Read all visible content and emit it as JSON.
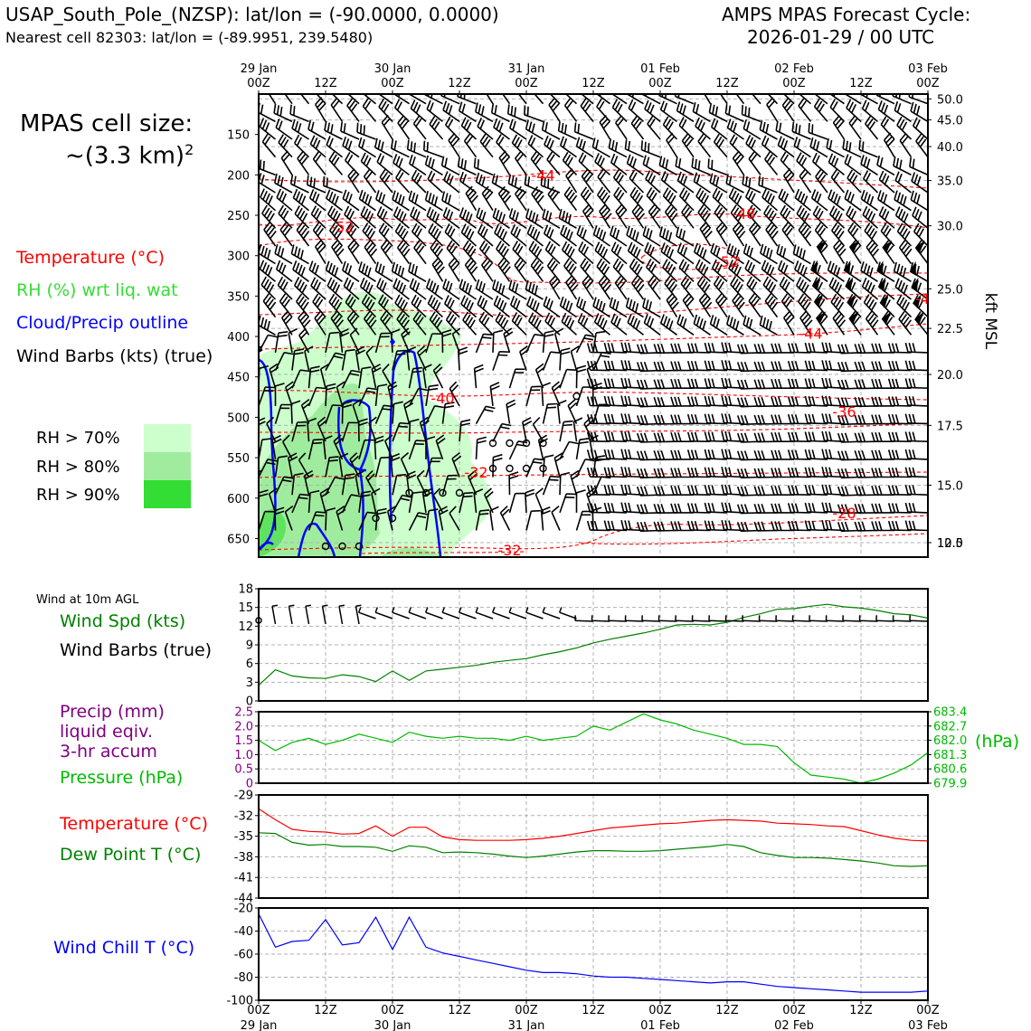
{
  "header": {
    "station": "USAP_South_Pole_(NZSP): lat/lon = (-90.0000, 0.0000)",
    "nearest": "Nearest cell 82303: lat/lon = (-89.9951, 239.5480)",
    "cycle_title": "AMPS MPAS Forecast Cycle:",
    "cycle_time": "2026-01-29 / 00 UTC"
  },
  "cell_size": {
    "line1": "MPAS cell size:",
    "line2": "~(3.3 km)",
    "sup": "2"
  },
  "legend": {
    "temperature": "Temperature (°C)",
    "rh": "RH (%) wrt liq. wat",
    "cloud": "Cloud/Precip outline",
    "barbs": "Wind Barbs (kts) (true)",
    "rh70": "RH > 70%",
    "rh80": "RH > 80%",
    "rh90": "RH > 90%"
  },
  "colors": {
    "temperature": "#ff0000",
    "rh_label": "#33dd33",
    "cloud": "#0000ff",
    "rh70": "#ccffcc",
    "rh80": "#a0ec9f",
    "rh90": "#33dd33",
    "wind_speed": "#008000",
    "precip": "#800080",
    "pressure": "#00bb00",
    "dewpoint": "#008000",
    "windchill": "#0000ff"
  },
  "time_axis": {
    "ticks": [
      "00Z",
      "12Z",
      "00Z",
      "12Z",
      "00Z",
      "12Z",
      "00Z",
      "12Z",
      "00Z",
      "12Z",
      "00Z"
    ],
    "dates": [
      "29 Jan",
      "30 Jan",
      "31 Jan",
      "01 Feb",
      "02 Feb",
      "03 Feb"
    ]
  },
  "panel_labels": {
    "wind10m_title": "Wind at 10m AGL",
    "wind_spd": "Wind Spd (kts)",
    "wind_barbs": "Wind Barbs (true)",
    "precip_1": "Precip (mm)",
    "precip_2": "liquid eqiv.",
    "precip_3": "3-hr accum",
    "pressure": "Pressure (hPa)",
    "pressure_unit": "(hPa)",
    "temperature": "Temperature (°C)",
    "dewpoint": "Dew Point T (°C)",
    "windchill": "Wind Chill T (°C)",
    "kft": "kft MSL"
  },
  "chart_data": [
    {
      "type": "heatmap",
      "description_axis": "time-height cross section",
      "x_hours": [
        0,
        120
      ],
      "y_left_ticks": [
        "150",
        "200",
        "250",
        "300",
        "350",
        "400",
        "450",
        "500",
        "550",
        "600",
        "650"
      ],
      "ylim_hpa": [
        673,
        100
      ],
      "y_right_ticks": [
        "50.0",
        "45.0",
        "40.0",
        "35.0",
        "30.0",
        "25.0",
        "22.5",
        "20.0",
        "17.5",
        "15.0",
        "12.5",
        "10.0"
      ],
      "y_right_hpa": [
        106,
        132,
        165,
        207,
        263,
        341,
        390,
        447,
        510,
        584,
        665,
        769
      ],
      "temperature_contour_labels": [
        {
          "text": "-44",
          "hour": 51,
          "hpa": 200
        },
        {
          "text": "-48",
          "hour": 87,
          "hpa": 248
        },
        {
          "text": "-52",
          "hour": 15,
          "hpa": 264
        },
        {
          "text": "-52",
          "hour": 84,
          "hpa": 307
        },
        {
          "text": "-44",
          "hour": 99,
          "hpa": 396
        },
        {
          "text": "-4",
          "hour": 119,
          "hpa": 353
        },
        {
          "text": "-40",
          "hour": 33,
          "hpa": 476
        },
        {
          "text": "-36",
          "hour": 105,
          "hpa": 493
        },
        {
          "text": "-32",
          "hour": 39,
          "hpa": 568
        },
        {
          "text": "-28",
          "hour": 105,
          "hpa": 618
        },
        {
          "text": "-32",
          "hour": 45,
          "hpa": 664
        }
      ],
      "grid": true
    },
    {
      "type": "line",
      "title": "Wind at 10m AGL",
      "ylabel": "Wind Spd (kts)",
      "ylim": [
        0,
        18
      ],
      "yticks": [
        "0",
        "3",
        "6",
        "9",
        "12",
        "15",
        "18"
      ],
      "x_hours": [
        0,
        3,
        6,
        9,
        12,
        15,
        18,
        21,
        24,
        27,
        30,
        33,
        36,
        39,
        42,
        45,
        48,
        51,
        54,
        57,
        60,
        63,
        66,
        69,
        72,
        75,
        78,
        81,
        84,
        87,
        90,
        93,
        96,
        99,
        102,
        105,
        108,
        111,
        114,
        117,
        120
      ],
      "series": [
        {
          "name": "Wind Spd (kts)",
          "values": [
            2.5,
            5.0,
            4.0,
            3.7,
            3.6,
            4.2,
            3.9,
            3.1,
            4.8,
            3.3,
            4.8,
            5.1,
            5.4,
            5.7,
            6.2,
            6.5,
            6.8,
            7.4,
            7.9,
            8.5,
            9.3,
            9.9,
            10.4,
            10.9,
            11.5,
            12.2,
            12.3,
            12.2,
            12.6,
            13.4,
            14.0,
            14.7,
            14.8,
            15.2,
            15.5,
            15.1,
            14.9,
            14.5,
            14.0,
            13.8,
            13.3
          ]
        }
      ],
      "grid": true
    },
    {
      "type": "line",
      "ylim_precip": [
        0,
        2.5
      ],
      "yticks_precip": [
        "0",
        "0.5",
        "1.0",
        "1.5",
        "2.0",
        "2.5"
      ],
      "yticks_pressure": [
        "679.9",
        "680.6",
        "681.3",
        "682.0",
        "682.7",
        "683.4"
      ],
      "ylim_pressure": [
        679.9,
        683.4
      ],
      "x_hours": [
        0,
        3,
        6,
        9,
        12,
        15,
        18,
        21,
        24,
        27,
        30,
        33,
        36,
        39,
        42,
        45,
        48,
        51,
        54,
        57,
        60,
        63,
        66,
        69,
        72,
        75,
        78,
        81,
        84,
        87,
        90,
        93,
        96,
        99,
        102,
        105,
        108,
        111,
        114,
        117,
        120
      ],
      "series": [
        {
          "name": "Pressure (hPa)",
          "values": [
            682.0,
            681.5,
            681.9,
            682.1,
            681.8,
            682.0,
            682.3,
            682.1,
            681.9,
            682.4,
            682.2,
            682.1,
            682.2,
            682.1,
            682.1,
            682.0,
            682.2,
            682.0,
            682.1,
            682.2,
            682.7,
            682.5,
            682.9,
            683.3,
            683.0,
            682.8,
            682.5,
            682.3,
            682.1,
            681.8,
            681.8,
            681.7,
            680.9,
            680.3,
            680.2,
            680.1,
            679.9,
            680.1,
            680.4,
            680.8,
            681.4
          ]
        },
        {
          "name": "Precip (mm)",
          "values": [
            0,
            0,
            0,
            0,
            0,
            0,
            0,
            0,
            0,
            0,
            0,
            0,
            0,
            0,
            0,
            0,
            0,
            0,
            0,
            0,
            0,
            0,
            0,
            0,
            0,
            0,
            0,
            0,
            0,
            0,
            0,
            0,
            0,
            0,
            0,
            0,
            0,
            0,
            0,
            0,
            0
          ]
        }
      ],
      "grid": true
    },
    {
      "type": "line",
      "ylim": [
        -44,
        -29
      ],
      "yticks": [
        "-29",
        "-32",
        "-35",
        "-38",
        "-41",
        "-44"
      ],
      "x_hours": [
        0,
        3,
        6,
        9,
        12,
        15,
        18,
        21,
        24,
        27,
        30,
        33,
        36,
        39,
        42,
        45,
        48,
        51,
        54,
        57,
        60,
        63,
        66,
        69,
        72,
        75,
        78,
        81,
        84,
        87,
        90,
        93,
        96,
        99,
        102,
        105,
        108,
        111,
        114,
        117,
        120
      ],
      "series": [
        {
          "name": "Temperature (°C)",
          "values": [
            -31.0,
            -32.6,
            -34.0,
            -34.3,
            -34.4,
            -34.7,
            -34.6,
            -33.5,
            -35.0,
            -33.7,
            -33.7,
            -35.1,
            -35.5,
            -35.6,
            -35.6,
            -35.6,
            -35.5,
            -35.3,
            -35.0,
            -34.6,
            -34.2,
            -33.8,
            -33.6,
            -33.4,
            -33.2,
            -33.1,
            -32.9,
            -32.7,
            -32.6,
            -32.7,
            -32.8,
            -33.1,
            -33.2,
            -33.3,
            -33.5,
            -33.6,
            -34.2,
            -34.8,
            -35.3,
            -35.6,
            -35.7
          ]
        },
        {
          "name": "Dew Point T (°C)",
          "values": [
            -34.5,
            -34.6,
            -35.9,
            -36.3,
            -36.2,
            -36.5,
            -36.5,
            -36.6,
            -37.2,
            -36.4,
            -36.6,
            -37.4,
            -37.3,
            -37.4,
            -37.6,
            -37.9,
            -38.1,
            -37.9,
            -37.6,
            -37.3,
            -37.1,
            -37.1,
            -37.2,
            -37.2,
            -37.1,
            -36.9,
            -36.7,
            -36.5,
            -36.2,
            -36.5,
            -37.4,
            -37.8,
            -38.1,
            -38.1,
            -38.2,
            -38.4,
            -38.6,
            -38.9,
            -39.3,
            -39.4,
            -39.3
          ]
        }
      ],
      "grid": true
    },
    {
      "type": "line",
      "ylim": [
        -100,
        -20
      ],
      "yticks": [
        "-20",
        "-40",
        "-60",
        "-80",
        "-100"
      ],
      "x_hours": [
        0,
        3,
        6,
        9,
        12,
        15,
        18,
        21,
        24,
        27,
        30,
        33,
        36,
        39,
        42,
        45,
        48,
        51,
        54,
        57,
        60,
        63,
        66,
        69,
        72,
        75,
        78,
        81,
        84,
        87,
        90,
        93,
        96,
        99,
        102,
        105,
        108,
        111,
        114,
        117,
        120
      ],
      "series": [
        {
          "name": "Wind Chill T (°C)",
          "values": [
            -25,
            -54,
            -49,
            -48,
            -30,
            -52,
            -50,
            -28,
            -56,
            -28,
            -54,
            -59,
            -62,
            -65,
            -68,
            -71,
            -74,
            -76,
            -76,
            -77,
            -79,
            -80,
            -80,
            -81,
            -82,
            -83,
            -84,
            -85,
            -84,
            -84,
            -86,
            -88,
            -89,
            -90,
            -91,
            -92,
            -93,
            -93,
            -93,
            -93,
            -92
          ]
        }
      ],
      "grid": true
    }
  ]
}
